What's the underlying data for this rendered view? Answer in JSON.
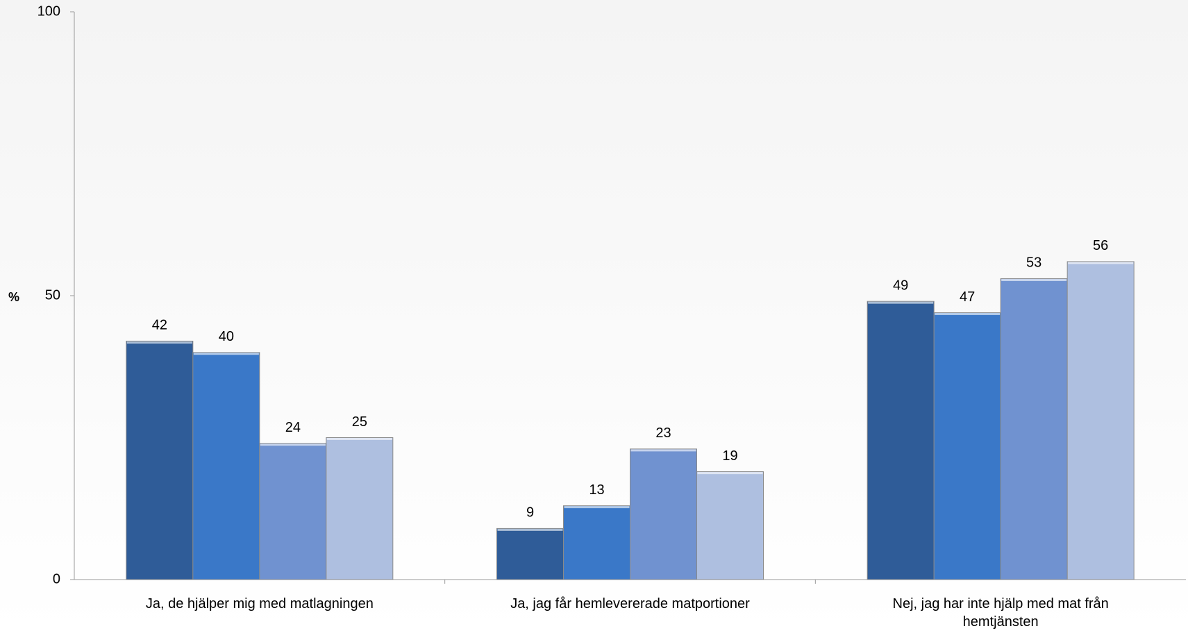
{
  "chart_data": {
    "type": "bar",
    "y_label": "%",
    "categories": [
      "Ja, de hjälper mig med matlagningen",
      "Ja, jag får hemlevererade  matportioner",
      "Nej, jag har inte hjälp med mat från hemtjänsten"
    ],
    "series": [
      {
        "color": "#2f5c98",
        "values": [
          42,
          9,
          49
        ]
      },
      {
        "color": "#3a78c8",
        "values": [
          40,
          13,
          47
        ]
      },
      {
        "color": "#7092d0",
        "values": [
          24,
          23,
          53
        ]
      },
      {
        "color": "#aebfe0",
        "values": [
          25,
          19,
          56
        ]
      }
    ],
    "ylim": [
      0,
      100
    ],
    "yticks": [
      0,
      50,
      100
    ],
    "grid": false
  }
}
